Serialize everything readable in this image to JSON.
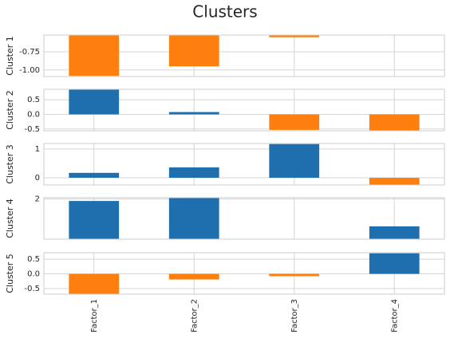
{
  "title": "Clusters",
  "categories": [
    "Factor_1",
    "Factor_2",
    "Factor_3",
    "Factor_4"
  ],
  "chart_data": [
    {
      "type": "bar",
      "ylabel": "Cluster 1",
      "values": [
        -1.08,
        -0.95,
        -0.55,
        null
      ],
      "colors": [
        "#ff7f0e",
        "#ff7f0e",
        "#ff7f0e",
        null
      ],
      "ylim": [
        -1.09,
        -0.52
      ],
      "yticks": [
        {
          "value": -1.0,
          "label": "-1.00"
        },
        {
          "value": -0.75,
          "label": "-0.75"
        }
      ],
      "grid": true
    },
    {
      "type": "bar",
      "ylabel": "Cluster 2",
      "values": [
        0.86,
        0.08,
        -0.53,
        -0.56
      ],
      "colors": [
        "#1f6fae",
        "#1f6fae",
        "#ff7f0e",
        "#ff7f0e"
      ],
      "ylim": [
        -0.56,
        0.86
      ],
      "yticks": [
        -0.5,
        {
          "value": 0,
          "label": "0.0"
        },
        0.5
      ],
      "grid": true
    },
    {
      "type": "bar",
      "ylabel": "Cluster 3",
      "values": [
        0.17,
        0.36,
        1.17,
        -0.25
      ],
      "colors": [
        "#1f6fae",
        "#1f6fae",
        "#1f6fae",
        "#ff7f0e"
      ],
      "ylim": [
        -0.25,
        1.19
      ],
      "yticks": [
        0,
        1
      ],
      "grid": true
    },
    {
      "type": "bar",
      "ylabel": "Cluster 4",
      "values": [
        1.92,
        2.05,
        null,
        0.91
      ],
      "colors": [
        "#1f6fae",
        "#1f6fae",
        null,
        "#1f6fae"
      ],
      "ylim": [
        0.4,
        2.05
      ],
      "yticks": [
        2
      ],
      "grid": true
    },
    {
      "type": "bar",
      "ylabel": "Cluster 5",
      "values": [
        -0.69,
        -0.19,
        -0.08,
        0.7
      ],
      "colors": [
        "#ff7f0e",
        "#ff7f0e",
        "#ff7f0e",
        "#1f6fae"
      ],
      "ylim": [
        -0.69,
        0.72
      ],
      "yticks": [
        -0.5,
        {
          "value": 0,
          "label": "0.0"
        },
        0.5
      ],
      "grid": true
    }
  ]
}
